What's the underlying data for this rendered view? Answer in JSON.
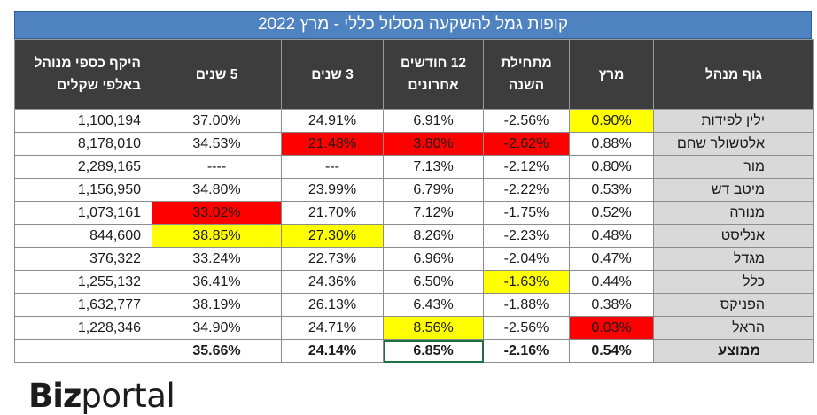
{
  "title": "קופות גמל להשקעה מסלול כללי - מרץ 2022",
  "headers": {
    "aum": "היקף כספי מנוהל באלפי שקלים",
    "y5": "5 שנים",
    "y3": "3 שנים",
    "m12": "12 חודשים אחרונים",
    "ytd": "מתחילת השנה",
    "march": "מרץ",
    "manager": "גוף מנהל"
  },
  "rows": [
    {
      "name": "ילין לפידות",
      "march": "0.90%",
      "ytd": "-2.56%",
      "m12": "6.91%",
      "y3": "24.91%",
      "y5": "37.00%",
      "aum": "1,100,194"
    },
    {
      "name": "אלטשולר שחם",
      "march": "0.88%",
      "ytd": "-2.62%",
      "m12": "3.80%",
      "y3": "21.48%",
      "y5": "34.53%",
      "aum": "8,178,010"
    },
    {
      "name": "מור",
      "march": "0.80%",
      "ytd": "-2.12%",
      "m12": "7.13%",
      "y3": "---",
      "y5": "----",
      "aum": "2,289,165"
    },
    {
      "name": "מיטב דש",
      "march": "0.53%",
      "ytd": "-2.22%",
      "m12": "6.79%",
      "y3": "23.99%",
      "y5": "34.80%",
      "aum": "1,156,950"
    },
    {
      "name": "מנורה",
      "march": "0.52%",
      "ytd": "-1.75%",
      "m12": "7.12%",
      "y3": "21.70%",
      "y5": "33.02%",
      "aum": "1,073,161"
    },
    {
      "name": "אנליסט",
      "march": "0.48%",
      "ytd": "-2.23%",
      "m12": "8.26%",
      "y3": "27.30%",
      "y5": "38.85%",
      "aum": "844,600"
    },
    {
      "name": "מגדל",
      "march": "0.47%",
      "ytd": "-2.04%",
      "m12": "6.96%",
      "y3": "22.73%",
      "y5": "33.24%",
      "aum": "376,322"
    },
    {
      "name": "כלל",
      "march": "0.44%",
      "ytd": "-1.63%",
      "m12": "6.50%",
      "y3": "24.36%",
      "y5": "36.41%",
      "aum": "1,255,132"
    },
    {
      "name": "הפניקס",
      "march": "0.38%",
      "ytd": "-1.88%",
      "m12": "6.43%",
      "y3": "26.13%",
      "y5": "38.19%",
      "aum": "1,632,777"
    },
    {
      "name": "הראל",
      "march": "0.03%",
      "ytd": "-2.56%",
      "m12": "8.56%",
      "y3": "24.71%",
      "y5": "34.90%",
      "aum": "1,228,346"
    }
  ],
  "average": {
    "name": "ממוצע",
    "march": "0.54%",
    "ytd": "-2.16%",
    "m12": "6.85%",
    "y3": "24.14%",
    "y5": "35.66%",
    "aum": ""
  },
  "highlights": {
    "yellow": "#ffff00",
    "red": "#ff0000",
    "cells": [
      {
        "row": 0,
        "col": "march",
        "color": "yellow"
      },
      {
        "row": 1,
        "col": "ytd",
        "color": "red"
      },
      {
        "row": 1,
        "col": "m12",
        "color": "red"
      },
      {
        "row": 1,
        "col": "y3",
        "color": "red"
      },
      {
        "row": 4,
        "col": "y5",
        "color": "red"
      },
      {
        "row": 5,
        "col": "y3",
        "color": "yellow"
      },
      {
        "row": 5,
        "col": "y5",
        "color": "yellow"
      },
      {
        "row": 7,
        "col": "ytd",
        "color": "yellow"
      },
      {
        "row": 9,
        "col": "march",
        "color": "red"
      },
      {
        "row": 9,
        "col": "m12",
        "color": "yellow"
      }
    ]
  },
  "colors": {
    "title_bg": "#4e82c0",
    "header_bg": "#3d3d3d",
    "name_bg": "#d9d9d9"
  },
  "logo": {
    "bold": "Biz",
    "regular": "portal"
  }
}
